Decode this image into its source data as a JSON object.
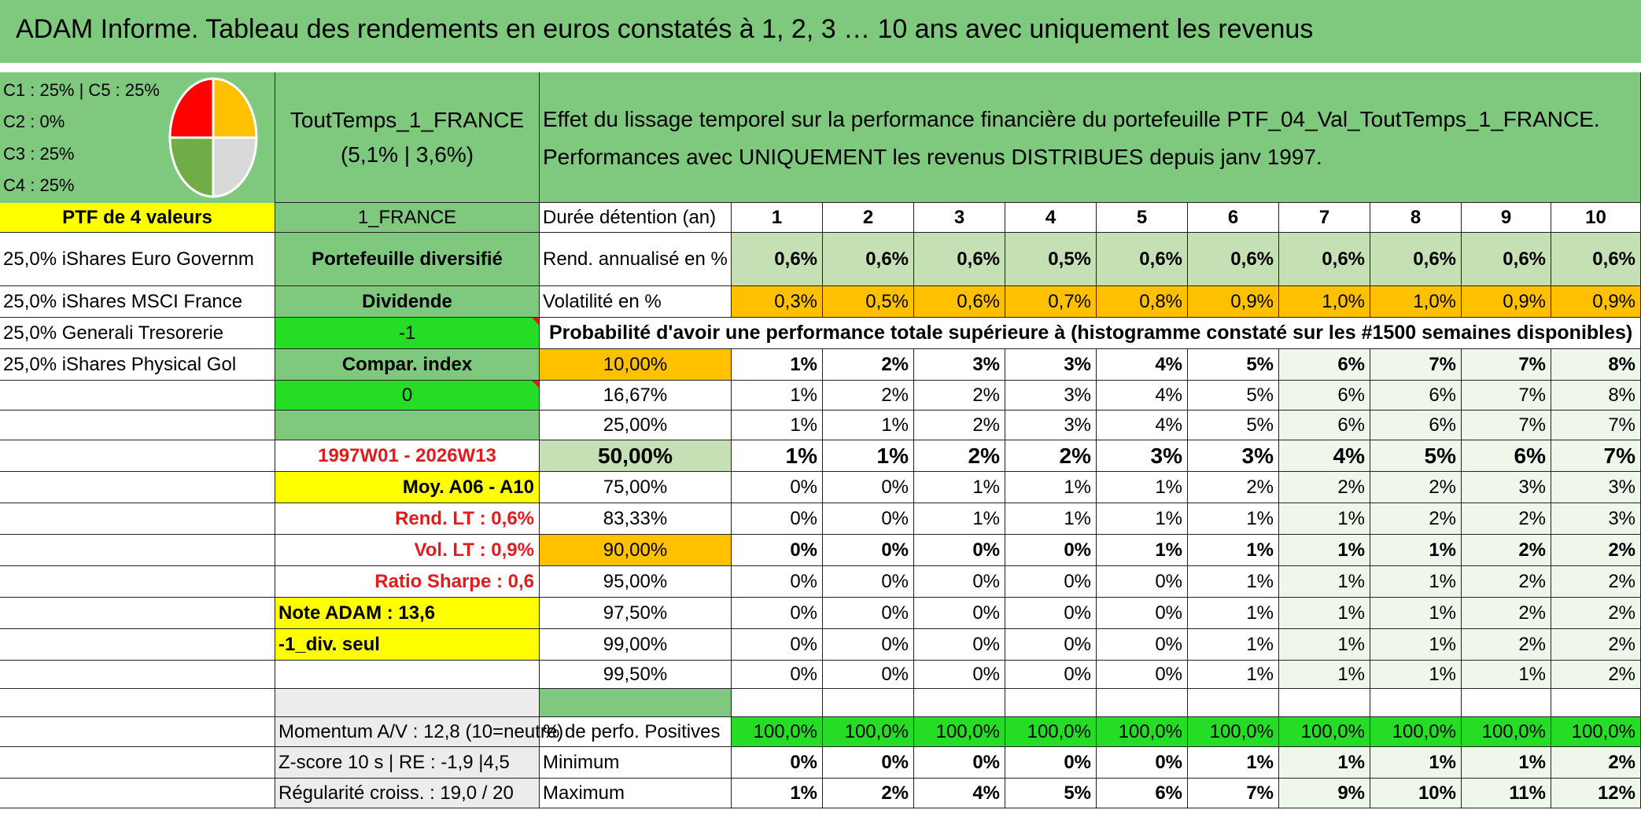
{
  "title": "ADAM Informe. Tableau des rendements en euros constatés à 1, 2, 3 … 10 ans avec uniquement les revenus",
  "legend": {
    "lines": [
      "C1 : 25% | C5 : 25%",
      "C2 : 0%",
      "C3 : 25%",
      "C4 : 25%"
    ],
    "pie": {
      "slices": [
        {
          "label": "C1",
          "value": 25,
          "color": "#ffc000"
        },
        {
          "label": "C5",
          "value": 25,
          "color": "#d9d9d9"
        },
        {
          "label": "C4",
          "value": 25,
          "color": "#70ad47"
        },
        {
          "label": "C3",
          "value": 25,
          "color": "#ff0000"
        }
      ]
    }
  },
  "portfolio": {
    "name": "ToutTemps_1_FRANCE",
    "stats": "(5,1% | 3,6%)",
    "description": "Effet du lissage temporel sur la performance financière du portefeuille PTF_04_Val_ToutTemps_1_FRANCE. Performances avec UNIQUEMENT les revenus DISTRIBUES depuis janv 1997.",
    "ptf_label": "PTF de 4 valeurs",
    "code": "1_FRANCE",
    "holdings": [
      "25,0% iShares Euro Governm",
      "25,0% iShares MSCI France",
      "25,0% Generali Tresorerie",
      "25,0% iShares Physical Gol"
    ],
    "type": "Portefeuille diversifié",
    "dividend": "Dividende",
    "minus_one": "-1",
    "compar": "Compar. index",
    "zero": "0",
    "period": "1997W01 - 2026W13",
    "moy": "Moy. A06 - A10",
    "rend_lt": "Rend. LT : 0,6%",
    "vol_lt": "Vol. LT : 0,9%",
    "sharpe": "Ratio Sharpe : 0,6",
    "note": "Note ADAM : 13,6",
    "div_seul": "-1_div. seul",
    "momentum": "Momentum A/V : 12,8 (10=neutre)",
    "zscore": "Z-score 10 s | RE : -1,9 |4,5",
    "regularite": "Régularité croiss. : 19,0 / 20"
  },
  "table": {
    "duration_label": "Durée détention (an)",
    "years": [
      "1",
      "2",
      "3",
      "4",
      "5",
      "6",
      "7",
      "8",
      "9",
      "10"
    ],
    "rend_label": "Rend. annualisé en %",
    "rend": [
      "0,6%",
      "0,6%",
      "0,6%",
      "0,5%",
      "0,6%",
      "0,6%",
      "0,6%",
      "0,6%",
      "0,6%",
      "0,6%"
    ],
    "vol_label": "Volatilité en %",
    "vol": [
      "0,3%",
      "0,5%",
      "0,6%",
      "0,7%",
      "0,8%",
      "0,9%",
      "1,0%",
      "1,0%",
      "0,9%",
      "0,9%"
    ],
    "prob_label": "Probabilité d'avoir une performance totale supérieure à (histogramme constaté sur les #1500 semaines disponibles)",
    "prob_rows": [
      {
        "threshold": "10,00%",
        "values": [
          "1%",
          "2%",
          "3%",
          "3%",
          "4%",
          "5%",
          "6%",
          "7%",
          "7%",
          "8%"
        ]
      },
      {
        "threshold": "16,67%",
        "values": [
          "1%",
          "2%",
          "2%",
          "3%",
          "4%",
          "5%",
          "6%",
          "6%",
          "7%",
          "8%"
        ]
      },
      {
        "threshold": "25,00%",
        "values": [
          "1%",
          "1%",
          "2%",
          "3%",
          "4%",
          "5%",
          "6%",
          "6%",
          "7%",
          "7%"
        ]
      },
      {
        "threshold": "50,00%",
        "values": [
          "1%",
          "1%",
          "2%",
          "2%",
          "3%",
          "3%",
          "4%",
          "5%",
          "6%",
          "7%"
        ]
      },
      {
        "threshold": "75,00%",
        "values": [
          "0%",
          "0%",
          "1%",
          "1%",
          "1%",
          "2%",
          "2%",
          "2%",
          "3%",
          "3%"
        ]
      },
      {
        "threshold": "83,33%",
        "values": [
          "0%",
          "0%",
          "1%",
          "1%",
          "1%",
          "1%",
          "1%",
          "2%",
          "2%",
          "3%"
        ]
      },
      {
        "threshold": "90,00%",
        "values": [
          "0%",
          "0%",
          "0%",
          "0%",
          "1%",
          "1%",
          "1%",
          "1%",
          "2%",
          "2%"
        ]
      },
      {
        "threshold": "95,00%",
        "values": [
          "0%",
          "0%",
          "0%",
          "0%",
          "0%",
          "1%",
          "1%",
          "1%",
          "2%",
          "2%"
        ]
      },
      {
        "threshold": "97,50%",
        "values": [
          "0%",
          "0%",
          "0%",
          "0%",
          "0%",
          "1%",
          "1%",
          "1%",
          "2%",
          "2%"
        ]
      },
      {
        "threshold": "99,00%",
        "values": [
          "0%",
          "0%",
          "0%",
          "0%",
          "0%",
          "1%",
          "1%",
          "1%",
          "2%",
          "2%"
        ]
      },
      {
        "threshold": "99,50%",
        "values": [
          "0%",
          "0%",
          "0%",
          "0%",
          "0%",
          "1%",
          "1%",
          "1%",
          "1%",
          "2%"
        ]
      }
    ],
    "pos_label": "% de perfo. Positives",
    "pos": [
      "100,0%",
      "100,0%",
      "100,0%",
      "100,0%",
      "100,0%",
      "100,0%",
      "100,0%",
      "100,0%",
      "100,0%",
      "100,0%"
    ],
    "min_label": "Minimum",
    "min": [
      "0%",
      "0%",
      "0%",
      "0%",
      "0%",
      "1%",
      "1%",
      "1%",
      "1%",
      "2%"
    ],
    "max_label": "Maximum",
    "max": [
      "1%",
      "2%",
      "4%",
      "5%",
      "6%",
      "7%",
      "9%",
      "10%",
      "11%",
      "12%"
    ]
  }
}
